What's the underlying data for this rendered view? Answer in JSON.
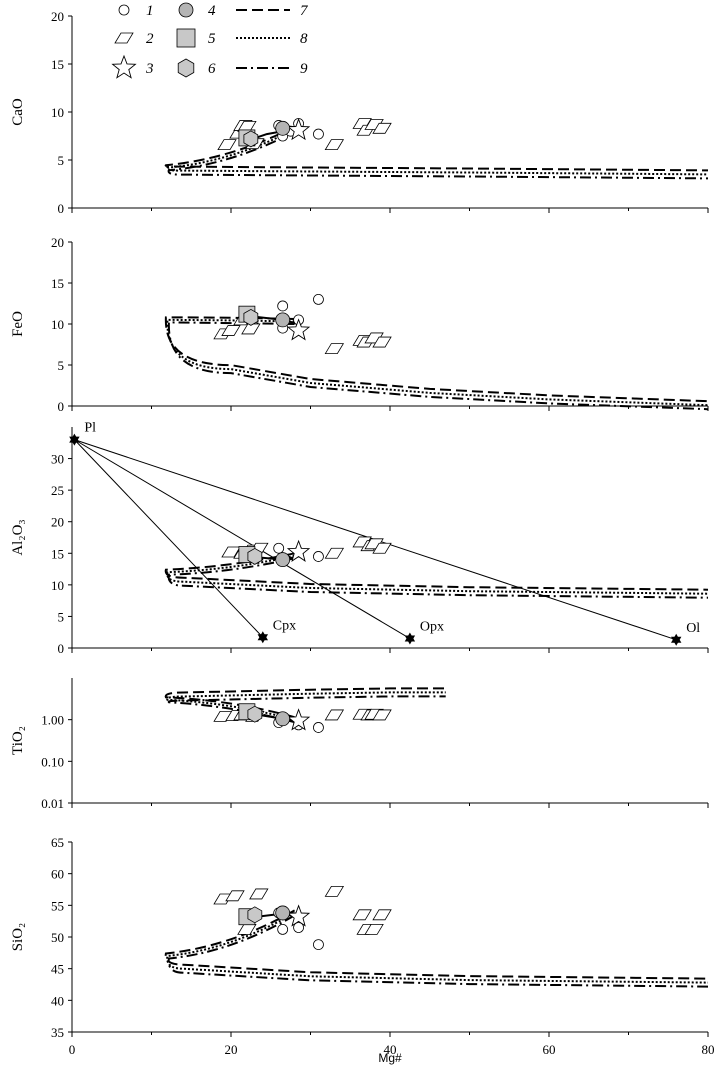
{
  "chart_data": {
    "type": "scatter",
    "xlabel": "Mg#",
    "xlim": [
      0,
      80
    ],
    "xticks": [
      "0",
      "20",
      "40",
      "60",
      "80"
    ],
    "legend": {
      "placement": "top-left",
      "entries": [
        {
          "label": "1",
          "marker": "open-circle"
        },
        {
          "label": "2",
          "marker": "open-parallelogram"
        },
        {
          "label": "3",
          "marker": "open-star"
        },
        {
          "label": "4",
          "marker": "grey-circle"
        },
        {
          "label": "5",
          "marker": "grey-square"
        },
        {
          "label": "6",
          "marker": "grey-hexagon"
        },
        {
          "label": "7",
          "line": "long-dash"
        },
        {
          "label": "8",
          "line": "dotted"
        },
        {
          "label": "9",
          "line": "dash-dot"
        }
      ]
    },
    "panels": [
      {
        "ylabel": "CaO",
        "scale": "linear",
        "ylim": [
          0,
          20
        ],
        "yticks": [
          "0",
          "5",
          "10",
          "15",
          "20"
        ],
        "trend": [
          [
            22,
            7.0
          ],
          [
            24.5,
            7.7
          ],
          [
            28.5,
            8.3
          ]
        ],
        "curve": {
          "apex": [
            12,
            4.2
          ],
          "upper_to": [
            28,
            8.2
          ],
          "lower": [
            [
              13.5,
              3.9
            ],
            [
              30,
              3.8
            ],
            [
              50,
              3.7
            ],
            [
              80,
              3.5
            ]
          ]
        },
        "series": [
          {
            "name": "1",
            "points": [
              [
                26,
                8.6
              ],
              [
                26.5,
                7.5
              ],
              [
                27.5,
                8.0
              ],
              [
                28.5,
                8.8
              ],
              [
                31,
                7.7
              ]
            ]
          },
          {
            "name": "2",
            "points": [
              [
                19.5,
                6.6
              ],
              [
                21,
                7.8
              ],
              [
                21.5,
                8.6
              ],
              [
                22,
                8.5
              ],
              [
                23,
                6.7
              ],
              [
                33,
                6.6
              ],
              [
                36.5,
                8.8
              ],
              [
                37,
                8.1
              ],
              [
                38,
                8.7
              ],
              [
                39,
                8.3
              ]
            ]
          },
          {
            "name": "3",
            "points": [
              [
                28.5,
                8.1
              ]
            ]
          },
          {
            "name": "4",
            "points": [
              [
                26.5,
                8.3
              ]
            ]
          },
          {
            "name": "5",
            "points": [
              [
                22,
                7.3
              ]
            ]
          },
          {
            "name": "6",
            "points": [
              [
                22.5,
                7.2
              ]
            ]
          }
        ]
      },
      {
        "ylabel": "FeO",
        "scale": "linear",
        "ylim": [
          0,
          20
        ],
        "yticks": [
          "0",
          "5",
          "10",
          "15",
          "20"
        ],
        "trend": [
          [
            22,
            11.0
          ],
          [
            26.5,
            10.5
          ],
          [
            28.5,
            10.0
          ]
        ],
        "curve": {
          "apex": [
            12,
            10.5
          ],
          "upper_to": [
            28,
            10.3
          ],
          "lower": [
            [
              20,
              4.5
            ],
            [
              30,
              2.8
            ],
            [
              45,
              1.6
            ],
            [
              60,
              0.8
            ],
            [
              80,
              0.1
            ]
          ]
        },
        "series": [
          {
            "name": "1",
            "points": [
              [
                26.5,
                12.2
              ],
              [
                26.5,
                9.5
              ],
              [
                28.5,
                10.5
              ],
              [
                31,
                13.0
              ]
            ]
          },
          {
            "name": "2",
            "points": [
              [
                19,
                8.8
              ],
              [
                20,
                9.2
              ],
              [
                21.5,
                10.5
              ],
              [
                22.5,
                9.4
              ],
              [
                33,
                7.0
              ],
              [
                36.5,
                8.0
              ],
              [
                37,
                7.8
              ],
              [
                38,
                8.3
              ],
              [
                39,
                7.8
              ]
            ]
          },
          {
            "name": "3",
            "points": [
              [
                28.5,
                9.2
              ]
            ]
          },
          {
            "name": "4",
            "points": [
              [
                26.5,
                10.5
              ]
            ]
          },
          {
            "name": "5",
            "points": [
              [
                22,
                11.2
              ]
            ]
          },
          {
            "name": "6",
            "points": [
              [
                22.5,
                10.8
              ]
            ]
          }
        ]
      },
      {
        "ylabel": "Al₂O₃",
        "scale": "linear",
        "ylim": [
          0,
          35
        ],
        "yticks": [
          "0",
          "5",
          "10",
          "15",
          "20",
          "25",
          "30"
        ],
        "trend": [
          [
            22,
            14.5
          ],
          [
            26.5,
            14.0
          ],
          [
            28.5,
            14.5
          ]
        ],
        "curve": {
          "apex": [
            12,
            12.0
          ],
          "upper_to": [
            28,
            14.6
          ],
          "lower": [
            [
              14,
              10.5
            ],
            [
              30,
              9.5
            ],
            [
              50,
              9.0
            ],
            [
              80,
              8.6
            ]
          ]
        },
        "minerals": [
          {
            "label": "Pl",
            "x": 0.3,
            "y": 33.0
          },
          {
            "label": "Cpx",
            "x": 24,
            "y": 1.7
          },
          {
            "label": "Opx",
            "x": 42.5,
            "y": 1.5
          },
          {
            "label": "Ol",
            "x": 76,
            "y": 1.3
          }
        ],
        "series": [
          {
            "name": "1",
            "points": [
              [
                26,
                15.8
              ],
              [
                26.5,
                14.3
              ],
              [
                28.5,
                15.2
              ],
              [
                31,
                14.5
              ]
            ]
          },
          {
            "name": "2",
            "points": [
              [
                20,
                15.2
              ],
              [
                21.5,
                15.0
              ],
              [
                22.5,
                15.5
              ],
              [
                23.5,
                15.8
              ],
              [
                33,
                15.0
              ],
              [
                36.5,
                16.8
              ],
              [
                37.5,
                16.2
              ],
              [
                38,
                16.5
              ],
              [
                39,
                15.8
              ]
            ]
          },
          {
            "name": "3",
            "points": [
              [
                28.5,
                15.2
              ]
            ]
          },
          {
            "name": "4",
            "points": [
              [
                26.5,
                14.0
              ]
            ]
          },
          {
            "name": "5",
            "points": [
              [
                22,
                14.8
              ]
            ]
          },
          {
            "name": "6",
            "points": [
              [
                23,
                14.5
              ]
            ]
          }
        ]
      },
      {
        "ylabel": "TiO₂",
        "scale": "log",
        "ylim": [
          0.01,
          10
        ],
        "yticks": [
          "0.01",
          "0.10",
          "1.00"
        ],
        "trend": [
          [
            22,
            1.45
          ],
          [
            26.5,
            1.05
          ],
          [
            28.5,
            0.9
          ]
        ],
        "curve": {
          "apex": [
            12,
            3.0
          ],
          "upper_to": [
            28,
            1.0
          ],
          "lower": [
            [
              14,
              3.6
            ],
            [
              30,
              4.2
            ],
            [
              40,
              4.5
            ],
            [
              47,
              4.5
            ]
          ]
        },
        "series": [
          {
            "name": "1",
            "points": [
              [
                26,
                0.85
              ],
              [
                26.5,
                0.95
              ],
              [
                28.5,
                0.75
              ],
              [
                31,
                0.65
              ]
            ]
          },
          {
            "name": "2",
            "points": [
              [
                19,
                1.2
              ],
              [
                20.5,
                1.25
              ],
              [
                21.5,
                1.3
              ],
              [
                23,
                1.2
              ],
              [
                33,
                1.3
              ],
              [
                36.5,
                1.35
              ],
              [
                37.5,
                1.3
              ],
              [
                38,
                1.35
              ],
              [
                39,
                1.3
              ]
            ]
          },
          {
            "name": "3",
            "points": [
              [
                28.5,
                0.95
              ]
            ]
          },
          {
            "name": "4",
            "points": [
              [
                26.5,
                1.05
              ]
            ]
          },
          {
            "name": "5",
            "points": [
              [
                22,
                1.55
              ]
            ]
          },
          {
            "name": "6",
            "points": [
              [
                23,
                1.35
              ]
            ]
          }
        ]
      },
      {
        "ylabel": "SiO₂",
        "scale": "linear",
        "ylim": [
          35,
          65
        ],
        "yticks": [
          "35",
          "40",
          "45",
          "50",
          "55",
          "60",
          "65"
        ],
        "trend": [
          [
            22,
            53.0
          ],
          [
            26.5,
            53.7
          ],
          [
            28.5,
            53.7
          ]
        ],
        "curve": {
          "apex": [
            12,
            47.0
          ],
          "upper_to": [
            28,
            53.8
          ],
          "lower": [
            [
              14,
              45.0
            ],
            [
              30,
              43.8
            ],
            [
              50,
              43.2
            ],
            [
              80,
              42.8
            ]
          ]
        },
        "series": [
          {
            "name": "1",
            "points": [
              [
                26,
                53.8
              ],
              [
                26.5,
                51.2
              ],
              [
                28.5,
                51.5
              ],
              [
                31,
                48.8
              ]
            ]
          },
          {
            "name": "2",
            "points": [
              [
                19,
                56.0
              ],
              [
                20.5,
                56.5
              ],
              [
                22,
                51.2
              ],
              [
                23.5,
                56.8
              ],
              [
                33,
                57.2
              ],
              [
                36.5,
                53.5
              ],
              [
                37,
                51.2
              ],
              [
                38,
                51.2
              ],
              [
                39,
                53.5
              ]
            ]
          },
          {
            "name": "3",
            "points": [
              [
                28.5,
                53.2
              ]
            ]
          },
          {
            "name": "4",
            "points": [
              [
                26.5,
                53.8
              ]
            ]
          },
          {
            "name": "5",
            "points": [
              [
                22,
                53.2
              ]
            ]
          },
          {
            "name": "6",
            "points": [
              [
                23,
                53.5
              ]
            ]
          }
        ]
      }
    ]
  }
}
